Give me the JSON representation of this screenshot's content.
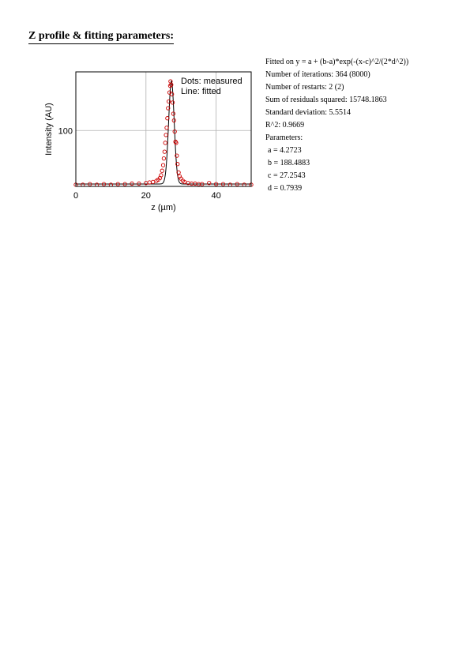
{
  "heading": "Z profile & fitting parameters:",
  "fit_info": {
    "equation": "Fitted on y = a + (b-a)*exp(-(x-c)^2/(2*d^2))",
    "iterations": "Number of iterations: 364 (8000)",
    "restarts": "Number of restarts: 2 (2)",
    "residuals": "Sum of residuals squared: 15748.1863",
    "std_dev": "Standard deviation: 5.5514",
    "r_squared": "R^2: 0.9669",
    "parameters_label": "Parameters:",
    "param_a": "a = 4.2723",
    "param_b": "b = 188.4883",
    "param_c": "c = 27.2543",
    "param_d": "d = 0.7939"
  },
  "chart_data": {
    "type": "scatter",
    "xlabel": "z (µm)",
    "ylabel": "Intensity (AU)",
    "xlim": [
      0,
      50
    ],
    "ylim": [
      0,
      205
    ],
    "xticks": [
      0,
      20,
      40
    ],
    "yticks": [
      100
    ],
    "grid": true,
    "legend": [
      "Dots: measured",
      "Line: fitted"
    ],
    "legend_placement": "top-right",
    "colors": {
      "measured": "#cc0000",
      "fitted": "#000000",
      "grid": "#b0b0b0"
    },
    "fit": {
      "a": 4.2723,
      "b": 188.4883,
      "c": 27.2543,
      "d": 0.7939
    },
    "series": [
      {
        "name": "measured",
        "x": [
          0,
          2,
          4,
          6,
          8,
          10,
          12,
          14,
          16,
          18,
          20,
          21,
          22,
          23,
          23.5,
          24,
          24.3,
          24.6,
          24.9,
          25.1,
          25.3,
          25.5,
          25.7,
          25.9,
          26.1,
          26.3,
          26.5,
          26.7,
          26.9,
          27.0,
          27.2,
          27.4,
          27.6,
          27.8,
          28.0,
          28.2,
          28.4,
          28.6,
          28.8,
          29.0,
          29.3,
          29.6,
          30.0,
          30.5,
          31.0,
          32,
          33,
          34,
          35,
          36,
          38,
          40,
          42,
          44,
          46,
          48,
          50
        ],
        "y": [
          3,
          3,
          4,
          3,
          4,
          3,
          4,
          4,
          5,
          5,
          6,
          7,
          8,
          10,
          12,
          15,
          20,
          28,
          38,
          50,
          62,
          78,
          92,
          105,
          122,
          140,
          152,
          168,
          180,
          188,
          182,
          165,
          150,
          130,
          118,
          98,
          80,
          78,
          55,
          40,
          25,
          18,
          14,
          10,
          8,
          6,
          5,
          5,
          4,
          4,
          6,
          4,
          4,
          3,
          4,
          3,
          3
        ]
      }
    ]
  }
}
